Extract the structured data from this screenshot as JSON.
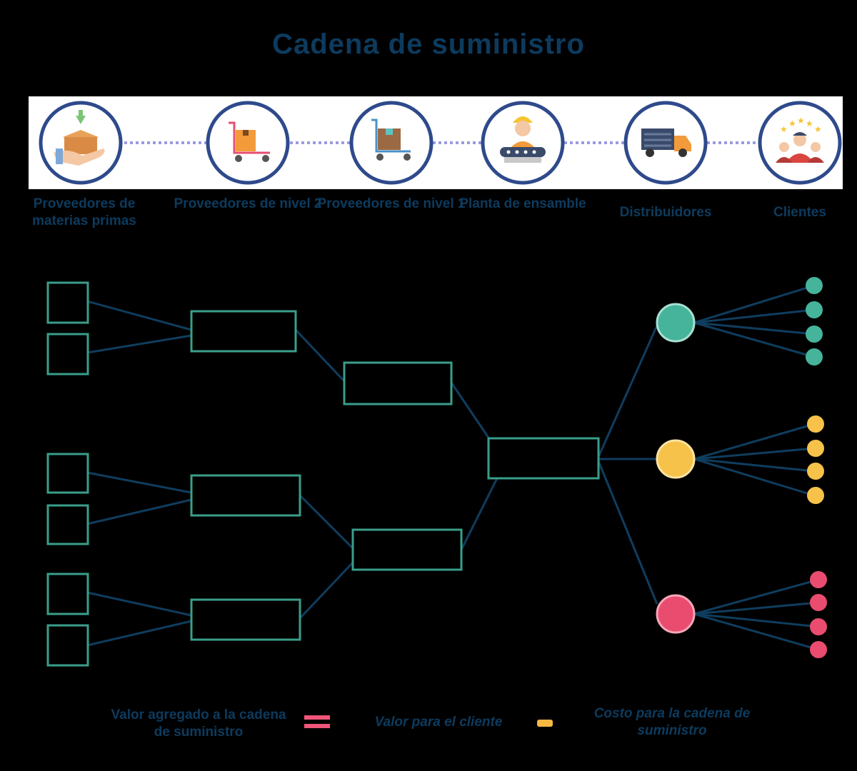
{
  "title": "Cadena de suministro",
  "stages": [
    {
      "label": "Proveedores de materias primas",
      "icon": "raw-materials-box-hand-icon"
    },
    {
      "label": "Proveedores de nivel 2",
      "icon": "hand-truck-orange-box-icon"
    },
    {
      "label": "Proveedores de nivel 1",
      "icon": "hand-truck-brown-box-icon"
    },
    {
      "label": "Planta de ensamble",
      "icon": "assembly-worker-icon"
    },
    {
      "label": "Distribuidores",
      "icon": "delivery-truck-icon"
    },
    {
      "label": "Clientes",
      "icon": "customers-stars-icon"
    }
  ],
  "legend": {
    "value_added": "Valor agregado a la cadena de suministro",
    "customer_value": "Valor para el cliente",
    "chain_costs": "Costo para la cadena de suministro"
  },
  "colors": {
    "title": "#0d3b5e",
    "ring": "#2e4a8b",
    "connector": "#9a9ae0",
    "box_border": "#3a9e8a",
    "line": "#0f3d5e",
    "teal": "#45b49b",
    "yellow": "#f7c24a",
    "pink": "#e94c6f",
    "legend_pink": "#f0557a",
    "legend_orange": "#f5b942"
  }
}
